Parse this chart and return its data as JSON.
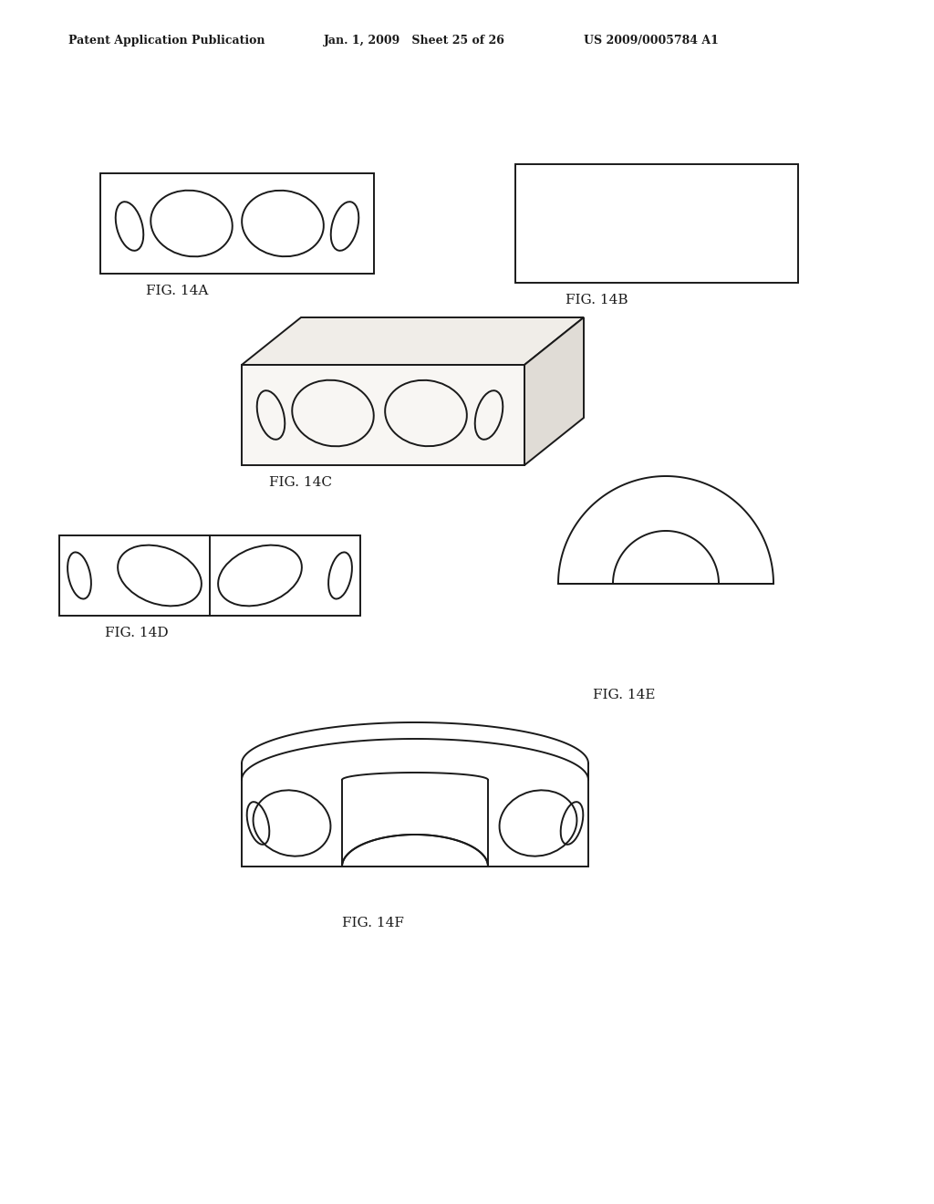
{
  "background_color": "#ffffff",
  "header_left": "Patent Application Publication",
  "header_center": "Jan. 1, 2009   Sheet 25 of 26",
  "header_right": "US 2009/0005784 A1",
  "line_color": "#1a1a1a",
  "lw": 1.4
}
